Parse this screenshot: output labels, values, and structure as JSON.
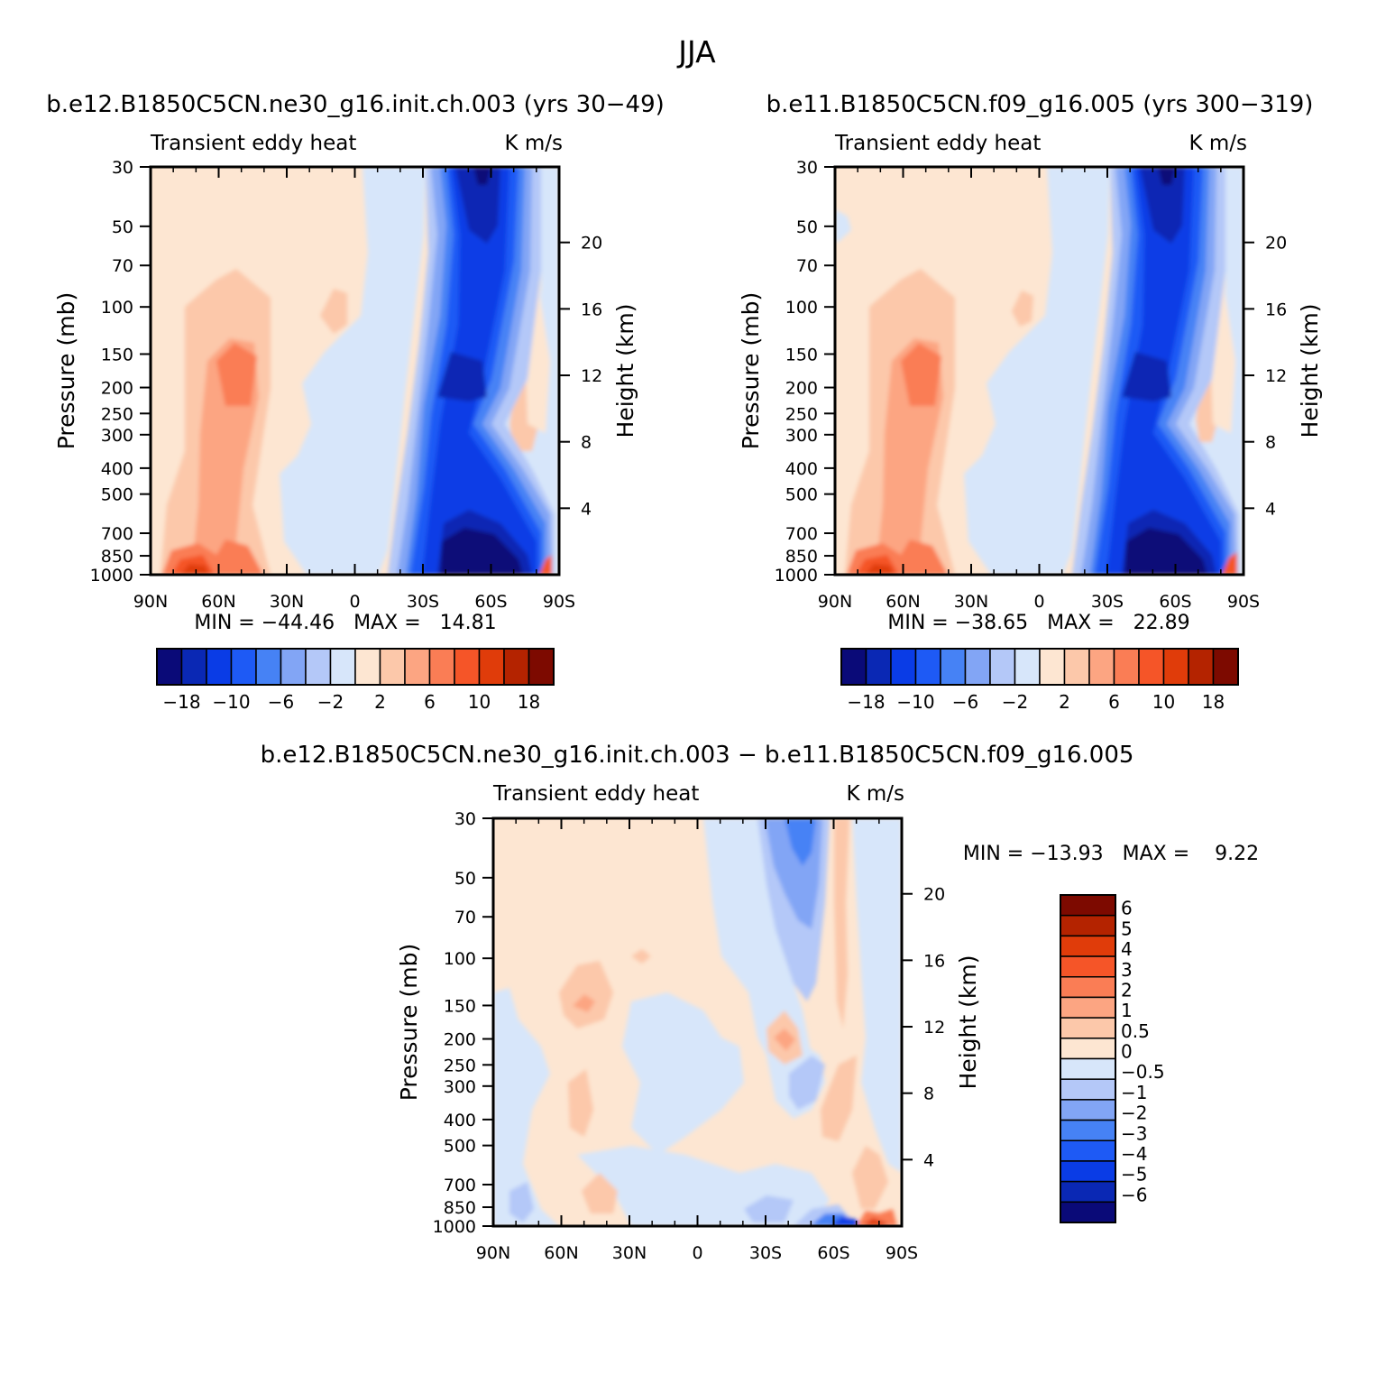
{
  "figure_title": "JJA",
  "chart_data": [
    {
      "type": "heatmap",
      "title": "b.e12.B1850C5CN.ne30_g16.init.ch.003 (yrs 30−49)",
      "left_string": "Transient eddy heat",
      "right_string": "K m/s",
      "xlabel": "",
      "ylabel": "Pressure (mb)",
      "ylabel_right": "Height (km)",
      "x_ticks": [
        "90N",
        "60N",
        "30N",
        "0",
        "30S",
        "60S",
        "90S"
      ],
      "y_ticks": [
        "30",
        "50",
        "70",
        "100",
        "150",
        "200",
        "250",
        "300",
        "400",
        "500",
        "700",
        "850",
        "1000"
      ],
      "y_right_ticks": [
        "20",
        "16",
        "12",
        "8",
        "4"
      ],
      "ylim": [
        1000,
        30
      ],
      "y_scale": "log",
      "x_range": [
        "90N",
        "90S"
      ],
      "stats": "MIN = −44.46   MAX =   14.81",
      "colorbar": {
        "orientation": "horizontal",
        "labels": [
          "−18",
          "−10",
          "−6",
          "−2",
          "2",
          "6",
          "10",
          "18"
        ]
      }
    },
    {
      "type": "heatmap",
      "title": "b.e11.B1850C5CN.f09_g16.005 (yrs 300−319)",
      "left_string": "Transient eddy heat",
      "right_string": "K m/s",
      "xlabel": "",
      "ylabel": "Pressure (mb)",
      "ylabel_right": "Height (km)",
      "x_ticks": [
        "90N",
        "60N",
        "30N",
        "0",
        "30S",
        "60S",
        "90S"
      ],
      "y_ticks": [
        "30",
        "50",
        "70",
        "100",
        "150",
        "200",
        "250",
        "300",
        "400",
        "500",
        "700",
        "850",
        "1000"
      ],
      "y_right_ticks": [
        "20",
        "16",
        "12",
        "8",
        "4"
      ],
      "ylim": [
        1000,
        30
      ],
      "y_scale": "log",
      "x_range": [
        "90N",
        "90S"
      ],
      "stats": "MIN = −38.65   MAX =   22.89",
      "colorbar": {
        "orientation": "horizontal",
        "labels": [
          "−18",
          "−10",
          "−6",
          "−2",
          "2",
          "6",
          "10",
          "18"
        ]
      }
    },
    {
      "type": "heatmap",
      "title": "b.e12.B1850C5CN.ne30_g16.init.ch.003 − b.e11.B1850C5CN.f09_g16.005",
      "left_string": "Transient eddy heat",
      "right_string": "K m/s",
      "xlabel": "",
      "ylabel": "Pressure (mb)",
      "ylabel_right": "Height (km)",
      "x_ticks": [
        "90N",
        "60N",
        "30N",
        "0",
        "30S",
        "60S",
        "90S"
      ],
      "y_ticks": [
        "30",
        "50",
        "70",
        "100",
        "150",
        "200",
        "250",
        "300",
        "400",
        "500",
        "700",
        "850",
        "1000"
      ],
      "y_right_ticks": [
        "20",
        "16",
        "12",
        "8",
        "4"
      ],
      "ylim": [
        1000,
        30
      ],
      "y_scale": "log",
      "x_range": [
        "90N",
        "90S"
      ],
      "stats": "MIN = −13.93   MAX =    9.22",
      "colorbar": {
        "orientation": "vertical",
        "labels": [
          "6",
          "5",
          "4",
          "3",
          "2",
          "1",
          "0.5",
          "0",
          "−0.5",
          "−1",
          "−2",
          "−3",
          "−4",
          "−5",
          "−6"
        ]
      }
    }
  ],
  "palettes": {
    "main": [
      "#0a0a78",
      "#0a28b4",
      "#0a3ce6",
      "#1e5af5",
      "#4682f5",
      "#82a5f5",
      "#b4c8f8",
      "#d7e6fa",
      "#fde6d2",
      "#fcc8aa",
      "#fca582",
      "#fa7d55",
      "#f55528",
      "#e03c0a",
      "#b42300",
      "#7d0a00"
    ],
    "diff": [
      "#7d0a00",
      "#b42300",
      "#e03c0a",
      "#f55528",
      "#fa7d55",
      "#fca582",
      "#fcc8aa",
      "#fde6d2",
      "#d7e6fa",
      "#b4c8f8",
      "#82a5f5",
      "#4682f5",
      "#1e5af5",
      "#0a3ce6",
      "#0a28b4",
      "#0a0a78"
    ]
  }
}
